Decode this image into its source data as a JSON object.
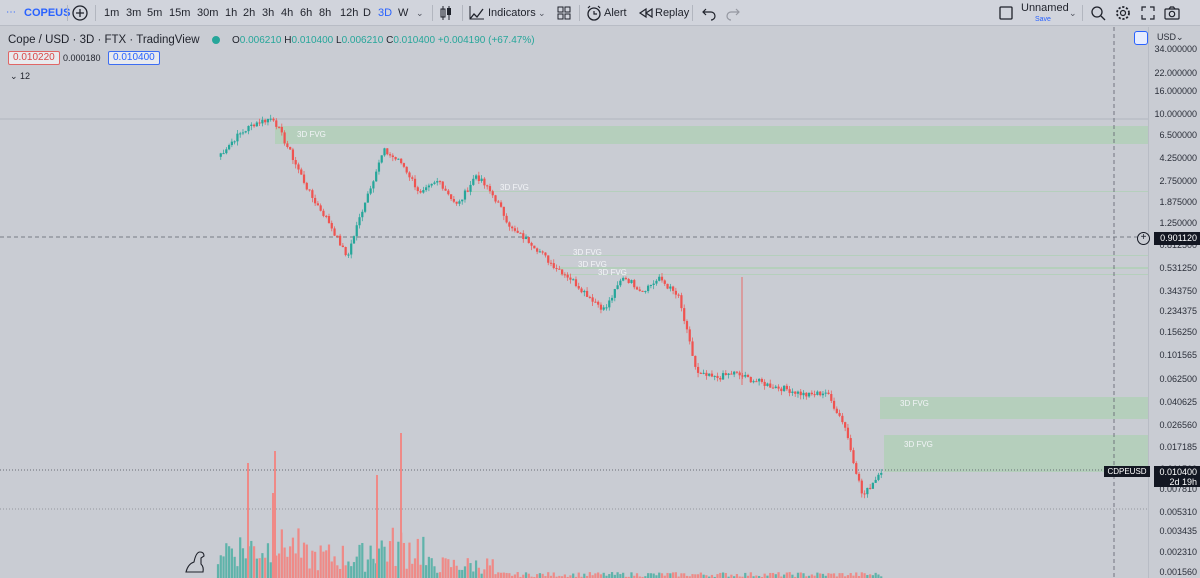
{
  "toolbar": {
    "symbol": "COPEUS",
    "timeframes": [
      "1m",
      "3m",
      "5m",
      "15m",
      "30m",
      "1h",
      "2h",
      "3h",
      "4h",
      "6h",
      "8h",
      "12h",
      "D",
      "3D",
      "W"
    ],
    "active_timeframe": "3D",
    "indicators_label": "Indicators",
    "alert_label": "Alert",
    "replay_label": "Replay",
    "layout_name": "Unnamed",
    "layout_status": "Save"
  },
  "legend": {
    "title": "Cope / USD · 3D · FTX · TradingView",
    "open_label": "O",
    "open": "0.006210",
    "high_label": "H",
    "high": "0.010400",
    "low_label": "L",
    "low": "0.006210",
    "close_label": "C",
    "close": "0.010400",
    "change": "+0.004190 (+67.47%)",
    "bid": "0.010220",
    "spread": "0.000180",
    "ask": "0.010400",
    "indicator_count": "12"
  },
  "price_axis": {
    "currency": "USD",
    "ticks": [
      "34.000000",
      "22.000000",
      "16.000000",
      "10.000000",
      "6.500000",
      "4.250000",
      "2.750000",
      "1.875000",
      "1.250000",
      "0.812500",
      "0.531250",
      "0.343750",
      "0.234375",
      "0.156250",
      "0.101565",
      "0.062500",
      "0.040625",
      "0.026560",
      "0.017185",
      "0.011560",
      "0.007810",
      "0.005310",
      "0.003435",
      "0.002310",
      "0.001560"
    ],
    "crosshair_price": "0.901120",
    "last_price": "0.010400",
    "last_countdown": "2d 19h",
    "symbol_label": "CDPEUSD"
  },
  "fvg_labels": [
    "3D FVG",
    "3D FVG",
    "3D FVG",
    "3D FVG",
    "3D FVG",
    "3D FVG",
    "3D FVG"
  ],
  "colors": {
    "up": "#26a69a",
    "down": "#ef5350",
    "volume_up": "#5fb3aa",
    "volume_down": "#ef8a87",
    "fvg": "#b3cfb9",
    "accent": "#2962ff"
  },
  "chart_data": {
    "type": "candlestick",
    "y_scale": "log",
    "series": [
      {
        "name": "Cope / USD · 3D · FTX",
        "ohlc_path": [
          4.1,
          6.0,
          7.8,
          8.6,
          4.2,
          2.0,
          1.2,
          0.6,
          1.8,
          4.6,
          3.6,
          2.0,
          2.6,
          1.6,
          2.9,
          1.9,
          1.0,
          0.8,
          0.55,
          0.42,
          0.3,
          0.22,
          0.42,
          0.32,
          0.4,
          0.28,
          0.065,
          0.06,
          0.066,
          0.058,
          0.052,
          0.048,
          0.043,
          0.046,
          0.025,
          0.0062,
          0.0104
        ]
      }
    ]
  }
}
